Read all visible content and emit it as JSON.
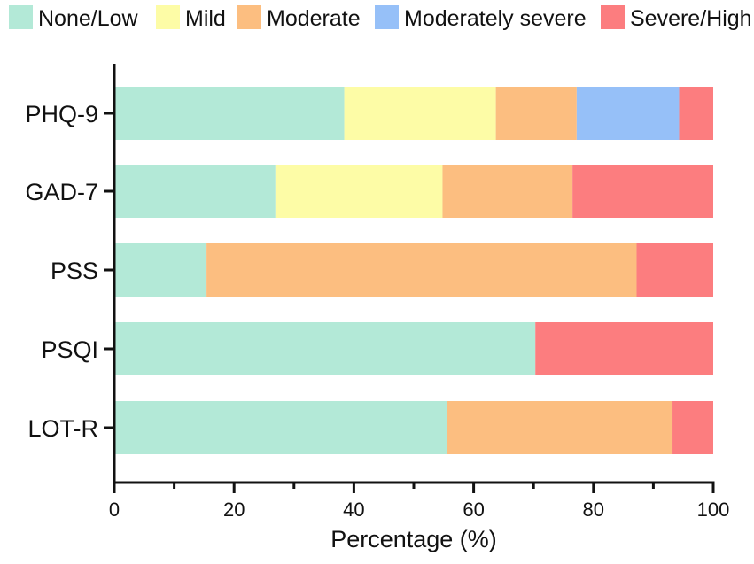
{
  "chart_data": {
    "type": "bar",
    "orientation": "horizontal",
    "stacked": true,
    "title": "",
    "xlabel": "Percentage (%)",
    "ylabel": "",
    "xlim": [
      0,
      100
    ],
    "x_ticks": [
      "0",
      "20",
      "40",
      "60",
      "80",
      "100"
    ],
    "legend_position": "top",
    "categories": [
      "PHQ-9",
      "GAD-7",
      "PSS",
      "PSQI",
      "LOT-R"
    ],
    "series": [
      {
        "name": "None/Low",
        "color": "#b3e9d7",
        "values": [
          38.4,
          26.9,
          15.4,
          70.3,
          55.5
        ]
      },
      {
        "name": "Mild",
        "color": "#fdfca6",
        "values": [
          25.3,
          27.9,
          0,
          0,
          0
        ]
      },
      {
        "name": "Moderate",
        "color": "#fcbe80",
        "values": [
          13.5,
          21.7,
          71.8,
          0,
          37.7
        ]
      },
      {
        "name": "Moderately severe",
        "color": "#96c0f8",
        "values": [
          17.1,
          0,
          0,
          0,
          0
        ]
      },
      {
        "name": "Severe/High",
        "color": "#fc7d7f",
        "values": [
          5.7,
          23.5,
          12.8,
          29.7,
          6.8
        ]
      }
    ]
  }
}
